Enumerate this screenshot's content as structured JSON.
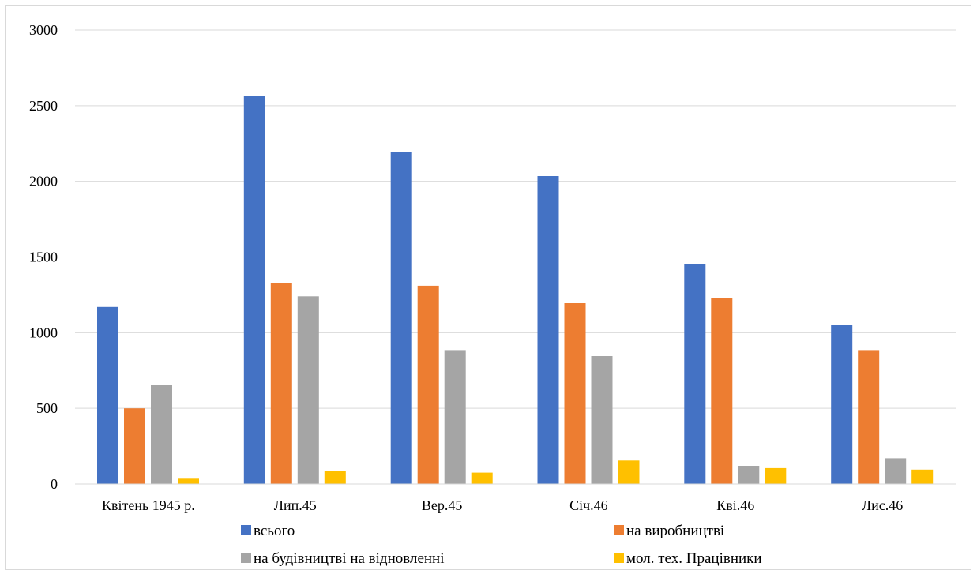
{
  "chart_data": {
    "type": "bar",
    "title": "",
    "xlabel": "",
    "ylabel": "",
    "categories": [
      "Квітень 1945 р.",
      "Лип.45",
      "Вер.45",
      "Січ.46",
      "Кві.46",
      "Лис.46"
    ],
    "series": [
      {
        "name": "всього",
        "color": "#4472C4",
        "values": [
          1170,
          2565,
          2195,
          2035,
          1455,
          1050
        ]
      },
      {
        "name": "на виробництві",
        "color": "#ED7D31",
        "values": [
          500,
          1325,
          1310,
          1195,
          1230,
          885
        ]
      },
      {
        "name": "на будівництві на відновленні",
        "color": "#A5A5A5",
        "values": [
          655,
          1240,
          885,
          845,
          120,
          170
        ]
      },
      {
        "name": "мол. тех. Працівники",
        "color": "#FFC000",
        "values": [
          35,
          85,
          75,
          155,
          105,
          95
        ]
      }
    ],
    "ylim": [
      0,
      3000
    ],
    "yticks": [
      0,
      500,
      1000,
      1500,
      2000,
      2500,
      3000
    ],
    "grid": true,
    "legend_position": "bottom"
  }
}
